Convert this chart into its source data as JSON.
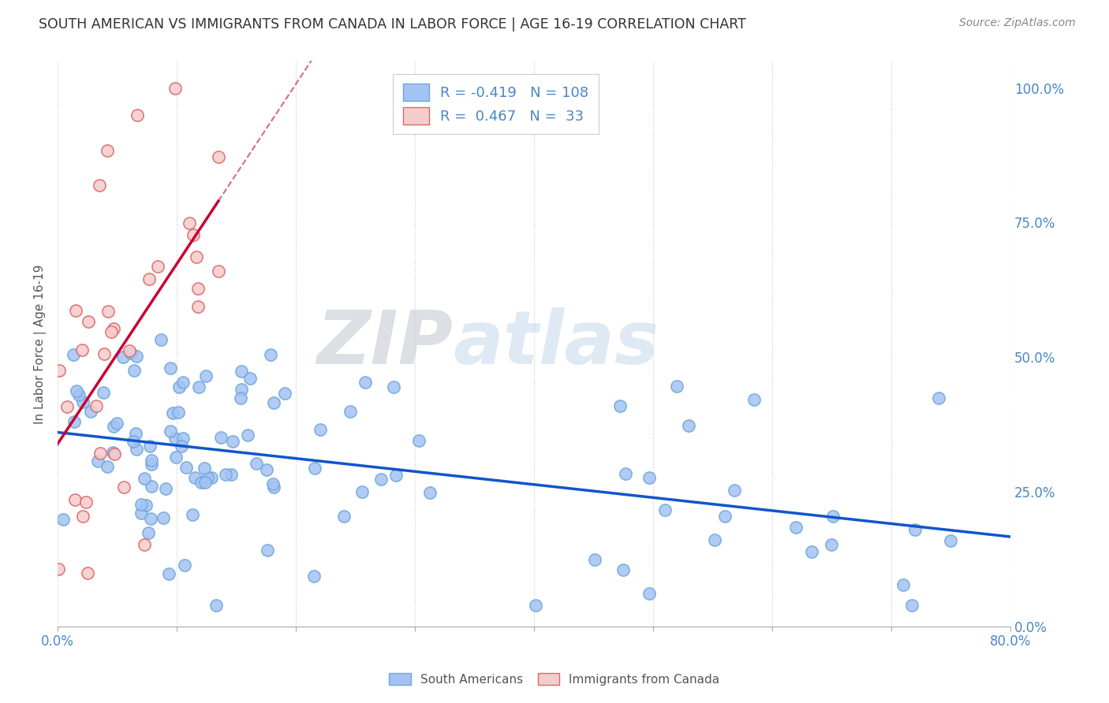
{
  "title": "SOUTH AMERICAN VS IMMIGRANTS FROM CANADA IN LABOR FORCE | AGE 16-19 CORRELATION CHART",
  "source": "Source: ZipAtlas.com",
  "ylabel": "In Labor Force | Age 16-19",
  "xmin": 0.0,
  "xmax": 0.8,
  "ymin": 0.0,
  "ymax": 1.05,
  "blue_R": -0.419,
  "blue_N": 108,
  "pink_R": 0.467,
  "pink_N": 33,
  "blue_color": "#a4c2f4",
  "pink_color": "#f4cccc",
  "blue_edge_color": "#6fa8dc",
  "pink_edge_color": "#e06666",
  "blue_line_color": "#1155cc",
  "pink_line_color": "#cc0033",
  "watermark_zip": "ZIP",
  "watermark_atlas": "atlas",
  "legend_labels": [
    "South Americans",
    "Immigrants from Canada"
  ],
  "seed": 77
}
